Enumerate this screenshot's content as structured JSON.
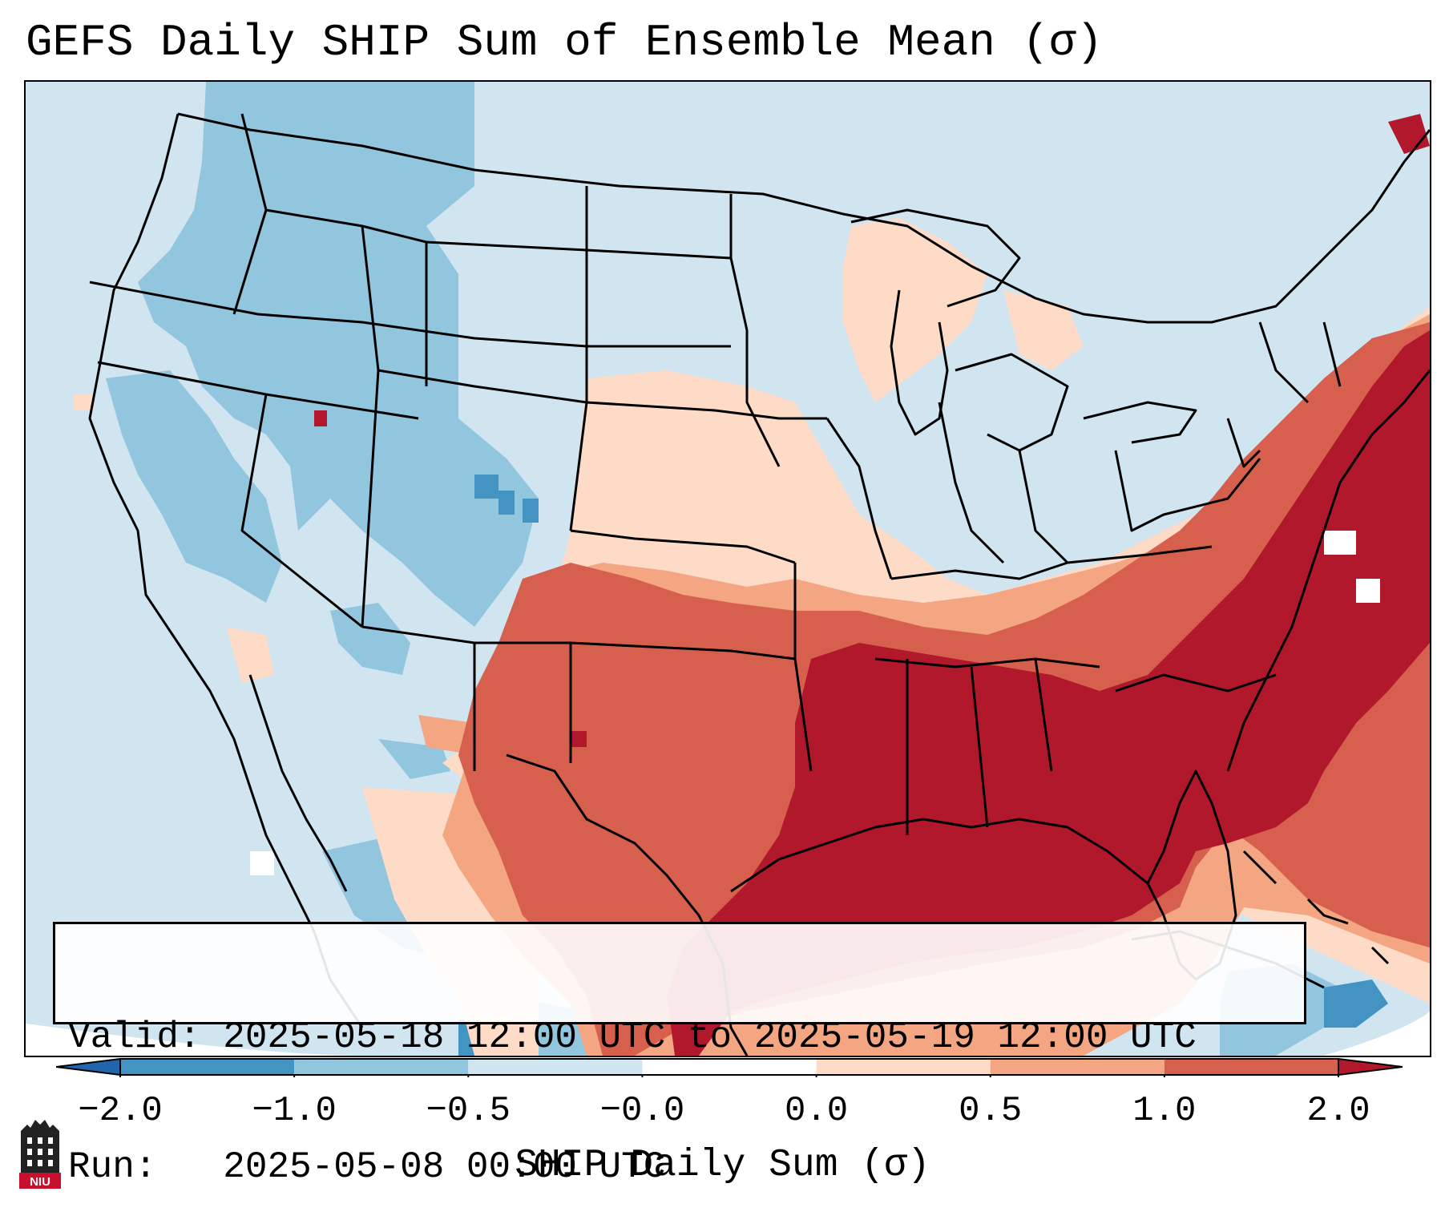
{
  "title": "GEFS Daily SHIP Sum of Ensemble Mean (σ)",
  "info": {
    "valid_label": "Valid:",
    "valid_value": "2025-05-18 12:00 UTC to 2025-05-19 12:00 UTC",
    "run_label": "Run:",
    "run_value": "2025-05-08 00:00 UTC"
  },
  "colorbar": {
    "label": "SHIP Daily Sum (σ)",
    "ticks": [
      "−2.0",
      "−1.0",
      "−0.5",
      "−0.0",
      "0.0",
      "0.5",
      "1.0",
      "2.0"
    ],
    "colors": [
      "#4393c3",
      "#92c5de",
      "#d1e5f0",
      "#ffffff",
      "#fddbc7",
      "#f4a582",
      "#d6604d"
    ],
    "extend_low_color": "#2166ac",
    "extend_high_color": "#b2182b"
  },
  "legend_colors": {
    "deep_blue": "#4393c3",
    "mid_blue": "#92c5de",
    "light_blue": "#d1e5f0",
    "light_red": "#fddbc7",
    "mid_red": "#f4a582",
    "red": "#d6604d",
    "deep_red": "#b2182b"
  },
  "logo": {
    "text": "NIU",
    "icon": "niu-logo-icon"
  }
}
